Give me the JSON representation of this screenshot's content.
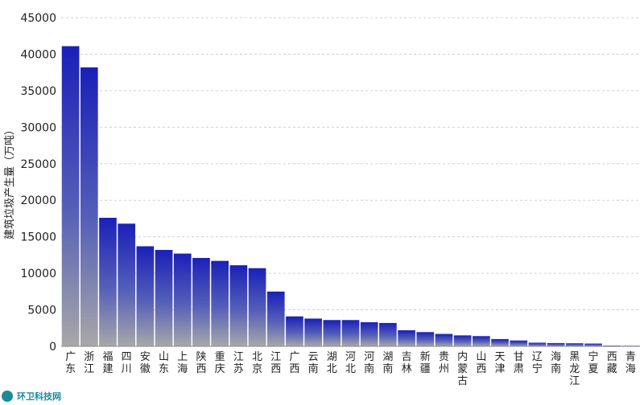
{
  "chart_data": {
    "type": "bar",
    "ylabel": "建筑垃圾产生量（万吨）",
    "ylim": [
      0,
      45000
    ],
    "yticks": [
      0,
      5000,
      10000,
      15000,
      20000,
      25000,
      30000,
      35000,
      40000,
      45000
    ],
    "grid": true,
    "categories": [
      "广东",
      "浙江",
      "福建",
      "四川",
      "安徽",
      "山东",
      "上海",
      "陕西",
      "重庆",
      "江苏",
      "北京",
      "江西",
      "广西",
      "云南",
      "湖北",
      "河北",
      "河南",
      "湖南",
      "吉林",
      "新疆",
      "贵州",
      "内蒙古",
      "山西",
      "天津",
      "甘肃",
      "辽宁",
      "海南",
      "黑龙江",
      "宁夏",
      "西藏",
      "青海"
    ],
    "values": [
      41100,
      38200,
      17600,
      16800,
      13700,
      13200,
      12700,
      12100,
      11700,
      11100,
      10700,
      7500,
      4100,
      3800,
      3600,
      3600,
      3300,
      3200,
      2200,
      1950,
      1700,
      1500,
      1400,
      1000,
      800,
      500,
      450,
      420,
      380,
      100,
      80
    ]
  },
  "colors": {
    "bar_top": "#1a20b8",
    "bar_bottom": "#a8a8a8",
    "grid": "#d0d0d0"
  },
  "watermark": {
    "text": "环卫科技网"
  }
}
